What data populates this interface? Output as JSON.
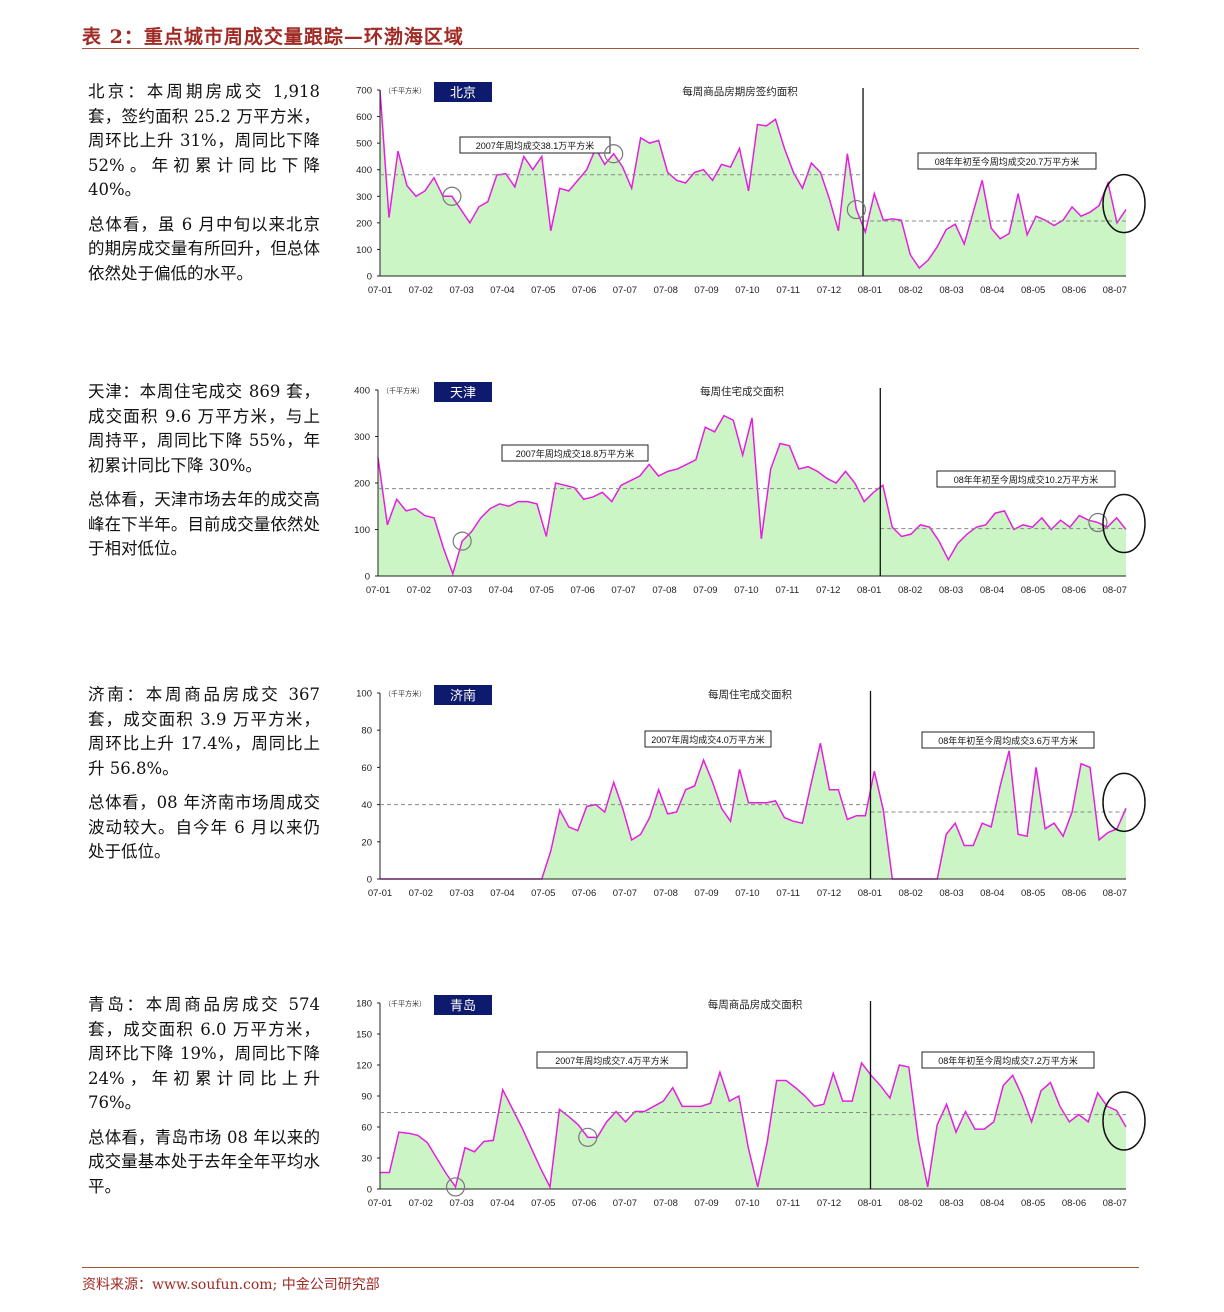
{
  "header": {
    "title": "表 2：重点城市周成交量跟踪—环渤海区域"
  },
  "footer": {
    "source": "资料来源：www.soufun.com; 中金公司研究部"
  },
  "sections": [
    {
      "city": "北京",
      "summary": "北京：本周期房成交 1,918 套，签约面积 25.2 万平方米，周环比上升 31%，周同比下降 52%。年初累计同比下降 40%。",
      "comment": "总体看，虽 6 月中旬以来北京的期房成交量有所回升，但总体依然处于偏低的水平。"
    },
    {
      "city": "天津",
      "summary": "天津：本周住宅成交 869 套，成交面积 9.6 万平方米，与上周持平，周同比下降 55%，年初累计同比下降 30%。",
      "comment": "总体看，天津市场去年的成交高峰在下半年。目前成交量依然处于相对低位。"
    },
    {
      "city": "济南",
      "summary": "济南：本周商品房成交 367 套，成交面积 3.9 万平方米，周环比上升 17.4%，周同比上升 56.8%。",
      "comment": "总体看，08 年济南市场周成交波动较大。自今年 6 月以来仍处于低位。"
    },
    {
      "city": "青岛",
      "summary": "青岛：本周商品房成交 574 套，成交面积 6.0 万平方米，周环比下降 19%，周同比下降 24%，年初累计同比上升 76%。",
      "comment": "总体看，青岛市场 08 年以来的成交量基本处于去年全年平均水平。"
    }
  ],
  "chart_data": [
    {
      "type": "area",
      "city_label": "北京",
      "title": "每周商品房期房签约面积",
      "unit": "（千平方米）",
      "x_ticks": [
        "07-01",
        "07-02",
        "07-03",
        "07-04",
        "07-05",
        "07-06",
        "07-07",
        "07-08",
        "07-09",
        "07-10",
        "07-11",
        "07-12",
        "08-01",
        "08-02",
        "08-03",
        "08-04",
        "08-05",
        "08-06",
        "08-07"
      ],
      "y_ticks": [
        0,
        100,
        200,
        300,
        400,
        500,
        600,
        700
      ],
      "ylim": [
        0,
        700
      ],
      "avg_2007": 381,
      "avg_2008": 207,
      "avg_2007_label": "2007年周均成交38.1万平方米",
      "avg_2008_label": "08年年初至今周均成交20.7万平方米",
      "values": [
        700,
        220,
        470,
        340,
        300,
        320,
        370,
        300,
        300,
        250,
        200,
        260,
        280,
        380,
        385,
        335,
        450,
        400,
        450,
        170,
        330,
        320,
        360,
        400,
        480,
        420,
        460,
        410,
        330,
        520,
        500,
        510,
        390,
        360,
        350,
        390,
        400,
        360,
        420,
        410,
        480,
        320,
        570,
        565,
        590,
        480,
        390,
        330,
        425,
        390,
        290,
        170,
        460,
        250,
        165,
        310,
        210,
        215,
        210,
        80,
        30,
        60,
        110,
        175,
        195,
        120,
        240,
        360,
        180,
        140,
        160,
        310,
        155,
        225,
        210,
        190,
        210,
        260,
        225,
        240,
        265,
        350,
        200,
        250
      ],
      "circles": [
        8,
        26,
        53,
        120,
        158,
        216
      ]
    },
    {
      "type": "area",
      "city_label": "天津",
      "title": "每周住宅成交面积",
      "unit": "（千平方米）",
      "x_ticks": [
        "07-01",
        "07-02",
        "07-03",
        "07-04",
        "07-05",
        "07-06",
        "07-07",
        "07-08",
        "07-09",
        "07-10",
        "07-11",
        "07-12",
        "08-01",
        "08-02",
        "08-03",
        "08-04",
        "08-05",
        "08-06",
        "08-07"
      ],
      "y_ticks": [
        0,
        100,
        200,
        300,
        400
      ],
      "ylim": [
        0,
        400
      ],
      "avg_2007": 188,
      "avg_2008": 102,
      "avg_2007_label": "2007年周均成交18.8万平方米",
      "avg_2008_label": "08年年初至今周均成交10.2万平方米",
      "values": [
        255,
        110,
        165,
        140,
        145,
        130,
        125,
        60,
        5,
        75,
        95,
        125,
        145,
        155,
        150,
        160,
        160,
        155,
        85,
        200,
        195,
        190,
        165,
        170,
        180,
        160,
        195,
        205,
        215,
        240,
        215,
        225,
        230,
        240,
        250,
        320,
        310,
        345,
        335,
        260,
        340,
        80,
        230,
        285,
        280,
        230,
        235,
        225,
        210,
        200,
        225,
        200,
        160,
        180,
        195,
        105,
        85,
        90,
        110,
        105,
        75,
        35,
        70,
        90,
        105,
        110,
        135,
        140,
        100,
        110,
        105,
        125,
        100,
        120,
        105,
        130,
        120,
        115,
        105,
        125,
        100
      ],
      "circles": [
        9,
        77,
        185,
        395,
        525,
        620,
        875,
        1065
      ]
    },
    {
      "type": "area",
      "city_label": "济南",
      "title": "每周住宅成交面积",
      "unit": "（千平方米）",
      "x_ticks": [
        "07-01",
        "07-02",
        "07-03",
        "07-04",
        "07-05",
        "07-06",
        "07-07",
        "07-08",
        "07-09",
        "07-10",
        "07-11",
        "07-12",
        "08-01",
        "08-02",
        "08-03",
        "08-04",
        "08-05",
        "08-06",
        "08-07"
      ],
      "y_ticks": [
        0,
        20,
        40,
        60,
        80,
        100
      ],
      "ylim": [
        0,
        100
      ],
      "avg_2007": 40,
      "avg_2008": 36,
      "avg_2007_label": "2007年周均成交4.0万平方米",
      "avg_2008_label": "08年年初至今周均成交3.6万平方米",
      "values": [
        0,
        0,
        0,
        0,
        0,
        0,
        0,
        0,
        0,
        0,
        0,
        0,
        0,
        0,
        0,
        0,
        0,
        0,
        0,
        15,
        37,
        28,
        26,
        39,
        40,
        36,
        52,
        38,
        21,
        24,
        33,
        48,
        35,
        36,
        48,
        50,
        64,
        52,
        38,
        31,
        59,
        41,
        41,
        41,
        42,
        33,
        31,
        30,
        52,
        73,
        48,
        48,
        32,
        34,
        34,
        58,
        37,
        0,
        0,
        0,
        0,
        0,
        0,
        24,
        30,
        18,
        18,
        30,
        28,
        50,
        69,
        24,
        23,
        60,
        27,
        30,
        23,
        36,
        62,
        60,
        21,
        25,
        27,
        38
      ],
      "circles": []
    },
    {
      "type": "area",
      "city_label": "青岛",
      "title": "每周商品房成交面积",
      "unit": "（千平方米）",
      "x_ticks": [
        "07-01",
        "07-02",
        "07-03",
        "07-04",
        "07-05",
        "07-06",
        "07-07",
        "07-08",
        "07-09",
        "07-10",
        "07-11",
        "07-12",
        "08-01",
        "08-02",
        "08-03",
        "08-04",
        "08-05",
        "08-06",
        "08-07"
      ],
      "y_ticks": [
        0,
        30,
        60,
        90,
        120,
        150,
        180
      ],
      "ylim": [
        0,
        180
      ],
      "avg_2007": 74,
      "avg_2008": 72,
      "avg_2007_label": "2007年周均成交7.4万平方米",
      "avg_2008_label": "08年年初至今周均成交7.2万平方米",
      "values": [
        16,
        16,
        55,
        54,
        52,
        45,
        30,
        15,
        2,
        40,
        36,
        46,
        47,
        96,
        78,
        60,
        40,
        20,
        2,
        77,
        70,
        62,
        50,
        50,
        65,
        75,
        65,
        75,
        75,
        80,
        85,
        98,
        80,
        80,
        80,
        83,
        113,
        85,
        90,
        40,
        2,
        45,
        105,
        105,
        98,
        90,
        80,
        82,
        112,
        85,
        85,
        122,
        110,
        100,
        88,
        120,
        118,
        48,
        2,
        62,
        82,
        55,
        75,
        58,
        58,
        65,
        100,
        110,
        90,
        65,
        95,
        103,
        80,
        65,
        72,
        65,
        93,
        80,
        76,
        60
      ],
      "circles": [
        8,
        22,
        150,
        197,
        282
      ]
    }
  ]
}
